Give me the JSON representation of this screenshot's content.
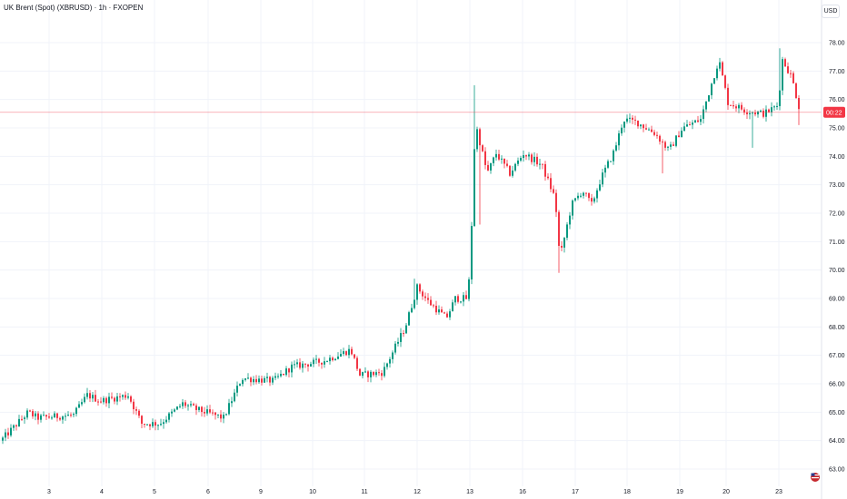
{
  "header": {
    "symbol_title": "UK Brent (Spot) (XBRUSD) · 1h · FXOPEN",
    "currency": "USD"
  },
  "colors": {
    "up": "#089981",
    "down": "#f23645",
    "grid": "#f0f3fa",
    "current_line": "#f23645"
  },
  "chart_data": {
    "type": "candlestick",
    "title": "UK Brent (Spot) (XBRUSD) · 1h · FXOPEN",
    "y_axis": {
      "min": 63,
      "max": 78,
      "ticks": [
        "63.00",
        "64.00",
        "65.00",
        "66.00",
        "67.00",
        "68.00",
        "69.00",
        "70.00",
        "71.00",
        "72.00",
        "73.00",
        "74.00",
        "75.00",
        "76.00",
        "77.00",
        "78.00"
      ]
    },
    "x_axis": {
      "ticks": [
        "3",
        "4",
        "5",
        "6",
        "9",
        "10",
        "11",
        "12",
        "13",
        "16",
        "17",
        "18",
        "19",
        "20",
        "23"
      ]
    },
    "grid": true,
    "current_price_label": "00:22",
    "current_price_level": 75.55,
    "anchors": [
      [
        0,
        64.0
      ],
      [
        30,
        65.0
      ],
      [
        40,
        64.8
      ],
      [
        80,
        64.9
      ],
      [
        95,
        65.6
      ],
      [
        110,
        65.4
      ],
      [
        140,
        65.6
      ],
      [
        155,
        64.6
      ],
      [
        175,
        64.6
      ],
      [
        200,
        65.3
      ],
      [
        215,
        65.1
      ],
      [
        245,
        64.8
      ],
      [
        265,
        66.2
      ],
      [
        300,
        66.1
      ],
      [
        320,
        66.6
      ],
      [
        355,
        66.8
      ],
      [
        385,
        67.2
      ],
      [
        395,
        66.3
      ],
      [
        420,
        66.4
      ],
      [
        445,
        68.0
      ],
      [
        458,
        69.4
      ],
      [
        470,
        68.9
      ],
      [
        490,
        68.3
      ],
      [
        500,
        69.0
      ],
      [
        512,
        69.0
      ],
      [
        516,
        69.8
      ],
      [
        522,
        75.2
      ],
      [
        535,
        73.4
      ],
      [
        545,
        74.1
      ],
      [
        560,
        73.4
      ],
      [
        575,
        74.1
      ],
      [
        595,
        73.7
      ],
      [
        610,
        72.5
      ],
      [
        615,
        70.4
      ],
      [
        628,
        72.3
      ],
      [
        640,
        72.8
      ],
      [
        650,
        72.3
      ],
      [
        660,
        73.2
      ],
      [
        675,
        74.2
      ],
      [
        685,
        75.3
      ],
      [
        700,
        75.2
      ],
      [
        720,
        74.8
      ],
      [
        735,
        74.2
      ],
      [
        750,
        75.0
      ],
      [
        770,
        75.3
      ],
      [
        790,
        77.4
      ],
      [
        800,
        75.9
      ],
      [
        820,
        75.6
      ],
      [
        840,
        75.5
      ],
      [
        855,
        75.8
      ],
      [
        860,
        77.4
      ],
      [
        870,
        76.8
      ],
      [
        880,
        75.5
      ]
    ],
    "spikes": [
      [
        456,
        "high",
        69.7
      ],
      [
        522,
        "high",
        76.5
      ],
      [
        528,
        "low",
        71.6
      ],
      [
        615,
        "low",
        69.9
      ],
      [
        730,
        "low",
        73.4
      ],
      [
        829,
        "low",
        74.3
      ],
      [
        858,
        "high",
        77.8
      ],
      [
        880,
        "low",
        75.1
      ]
    ]
  }
}
